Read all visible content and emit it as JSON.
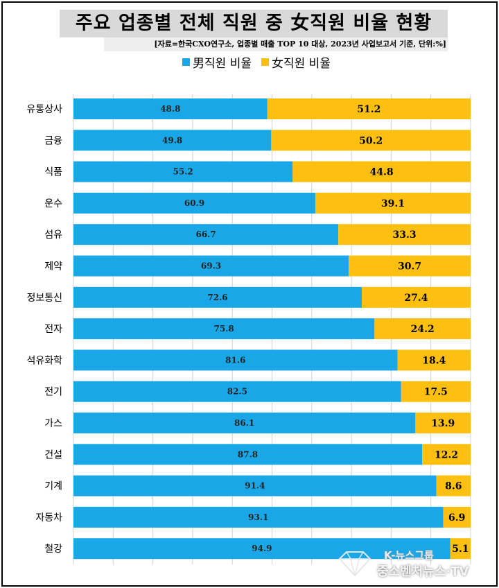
{
  "header": {
    "title": "주요 업종별 전체 직원 중 女직원 비율 현황",
    "source": "[자료=한국CXO연구소, 업종별 매출 TOP 10 대상, 2023년 사업보고서 기준, 단위:%]"
  },
  "legend": {
    "male_label": "男직원 비율",
    "female_label": "女직원 비율"
  },
  "colors": {
    "male": "#1aa7e8",
    "female": "#fdc010",
    "grid": "#d0d0d0",
    "title_bg": "#d9d9d9"
  },
  "watermark": {
    "top": "K-뉴스그룹",
    "bottom": "중소벤처뉴스·TV"
  },
  "chart_data": {
    "type": "bar",
    "orientation": "horizontal",
    "stacked": true,
    "categories": [
      "유통상사",
      "금융",
      "식품",
      "운수",
      "섬유",
      "제약",
      "정보통신",
      "전자",
      "석유화학",
      "전기",
      "가스",
      "건설",
      "기계",
      "자동차",
      "철강"
    ],
    "series": [
      {
        "name": "男직원 비율",
        "values": [
          48.8,
          49.8,
          55.2,
          60.9,
          66.7,
          69.3,
          72.6,
          75.8,
          81.6,
          82.5,
          86.1,
          87.8,
          91.4,
          93.1,
          94.9
        ]
      },
      {
        "name": "女직원 비율",
        "values": [
          51.2,
          50.2,
          44.8,
          39.1,
          33.3,
          30.7,
          27.4,
          24.2,
          18.4,
          17.5,
          13.9,
          12.2,
          8.6,
          6.9,
          5.1
        ]
      }
    ],
    "xlim": [
      0,
      100
    ],
    "grid": true,
    "legend_position": "top"
  }
}
